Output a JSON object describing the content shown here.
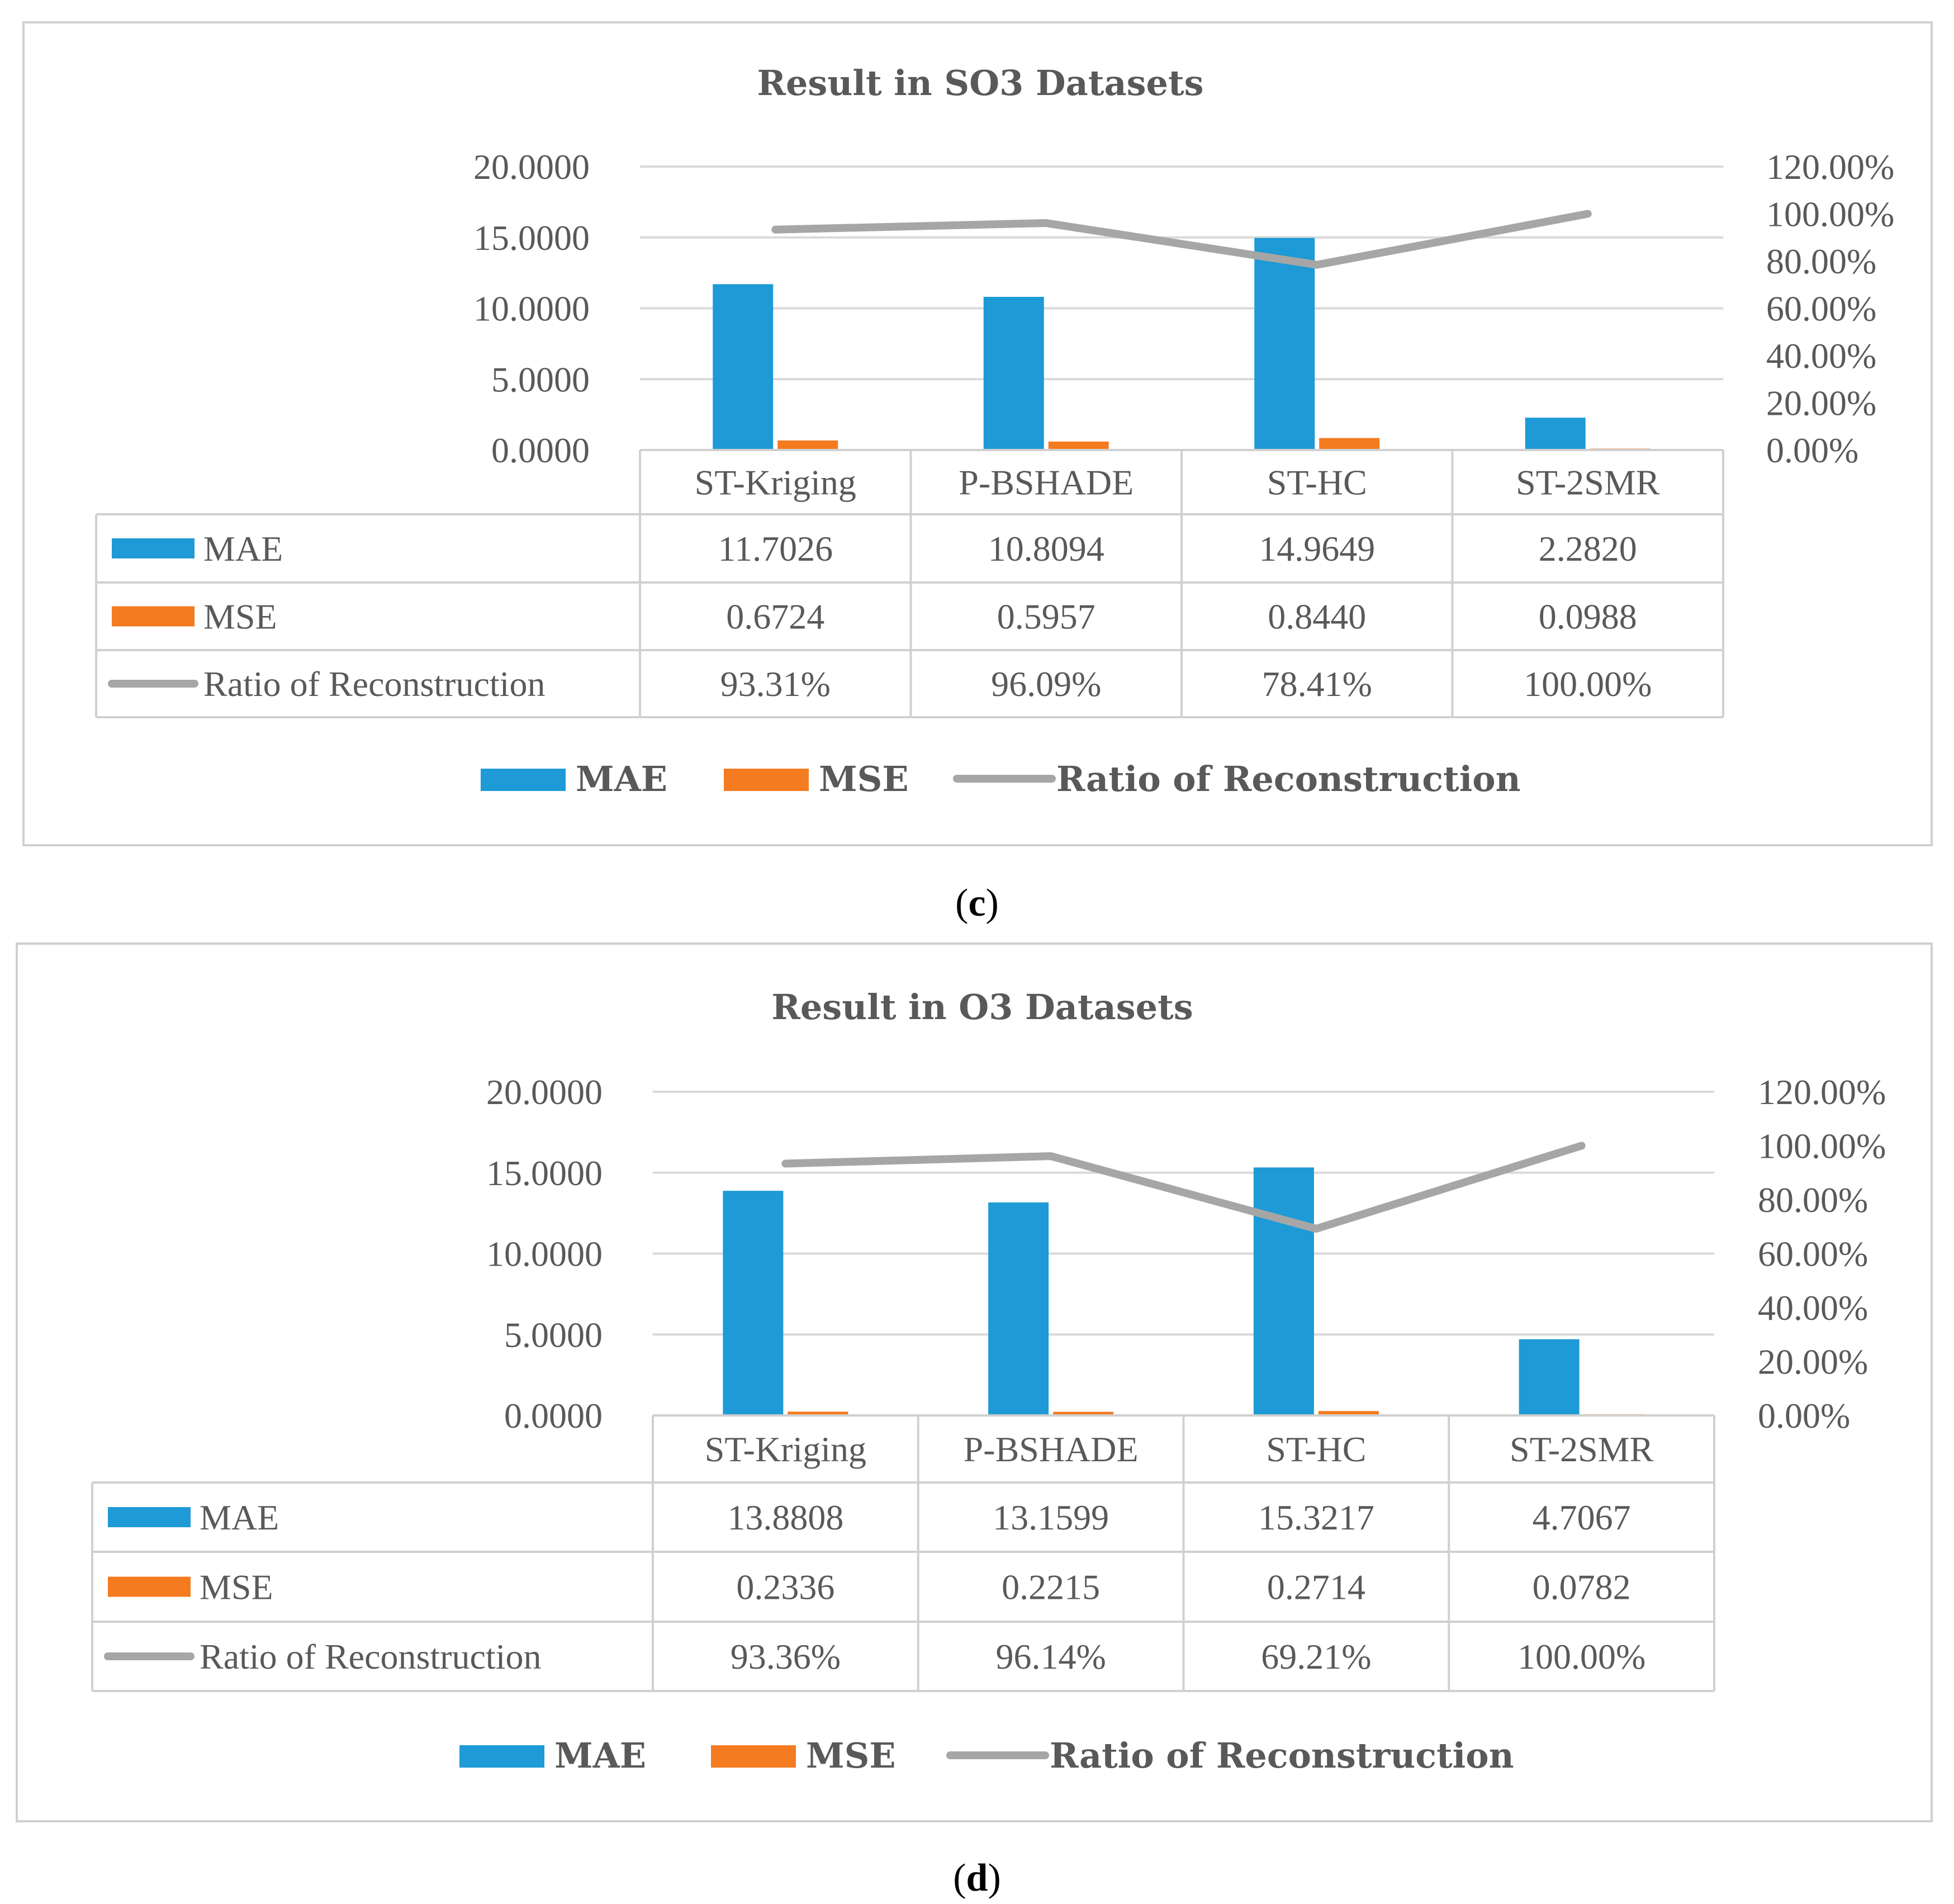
{
  "chart_data": [
    {
      "type": "bar",
      "title": "Result in SO3 Datasets",
      "categories": [
        "ST-Kriging",
        "P-BSHADE",
        "ST-HC",
        "ST-2SMR"
      ],
      "y_left": {
        "ticks": [
          "20.0000",
          "15.0000",
          "10.0000",
          "5.0000",
          "0.0000"
        ],
        "ylim": [
          0,
          20
        ]
      },
      "y_right": {
        "ticks": [
          "120.00%",
          "100.00%",
          "80.00%",
          "60.00%",
          "40.00%",
          "20.00%",
          "0.00%"
        ],
        "ylim": [
          0,
          120
        ]
      },
      "series": [
        {
          "name": "MAE",
          "kind": "bar",
          "axis": "left",
          "color": "#1e9ad6",
          "values": [
            11.7026,
            10.8094,
            14.9649,
            2.282
          ],
          "labels": [
            "11.7026",
            "10.8094",
            "14.9649",
            "2.2820"
          ]
        },
        {
          "name": "MSE",
          "kind": "bar",
          "axis": "left",
          "color": "#f47b20",
          "values": [
            0.6724,
            0.5957,
            0.844,
            0.0988
          ],
          "labels": [
            "0.6724",
            "0.5957",
            "0.8440",
            "0.0988"
          ]
        },
        {
          "name": "Ratio of  Reconstruction",
          "kind": "line",
          "axis": "right",
          "color": "#a6a6a6",
          "values": [
            93.31,
            96.09,
            78.41,
            100.0
          ],
          "labels": [
            "93.31%",
            "96.09%",
            "78.41%",
            "100.00%"
          ]
        }
      ],
      "caption_open": "(",
      "caption_letter": "c",
      "caption_close": ")"
    },
    {
      "type": "bar",
      "title": "Result in O3 Datasets",
      "categories": [
        "ST-Kriging",
        "P-BSHADE",
        "ST-HC",
        "ST-2SMR"
      ],
      "y_left": {
        "ticks": [
          "20.0000",
          "15.0000",
          "10.0000",
          "5.0000",
          "0.0000"
        ],
        "ylim": [
          0,
          20
        ]
      },
      "y_right": {
        "ticks": [
          "120.00%",
          "100.00%",
          "80.00%",
          "60.00%",
          "40.00%",
          "20.00%",
          "0.00%"
        ],
        "ylim": [
          0,
          120
        ]
      },
      "series": [
        {
          "name": "MAE",
          "kind": "bar",
          "axis": "left",
          "color": "#1e9ad6",
          "values": [
            13.8808,
            13.1599,
            15.3217,
            4.7067
          ],
          "labels": [
            "13.8808",
            "13.1599",
            "15.3217",
            "4.7067"
          ]
        },
        {
          "name": "MSE",
          "kind": "bar",
          "axis": "left",
          "color": "#f47b20",
          "values": [
            0.2336,
            0.2215,
            0.2714,
            0.0782
          ],
          "labels": [
            "0.2336",
            "0.2215",
            "0.2714",
            "0.0782"
          ]
        },
        {
          "name": "Ratio of  Reconstruction",
          "kind": "line",
          "axis": "right",
          "color": "#a6a6a6",
          "values": [
            93.36,
            96.14,
            69.21,
            100.0
          ],
          "labels": [
            "93.36%",
            "96.14%",
            "69.21%",
            "100.00%"
          ]
        }
      ],
      "caption_open": "(",
      "caption_letter": "d",
      "caption_close": ")"
    }
  ]
}
